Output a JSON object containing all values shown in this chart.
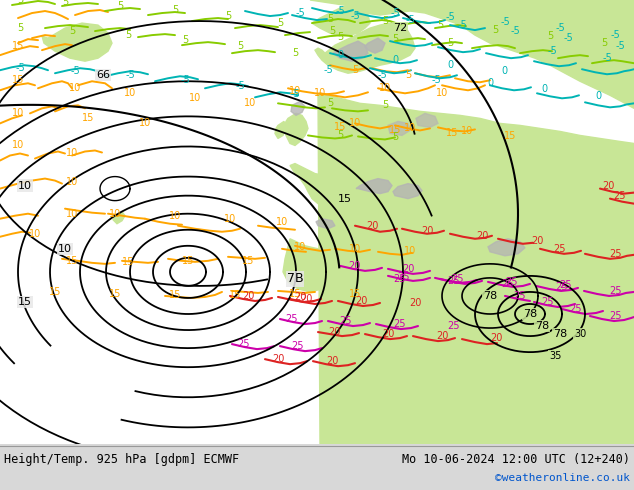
{
  "title_left": "Height/Temp. 925 hPa [gdpm] ECMWF",
  "title_right": "Mo 10-06-2024 12:00 UTC (12+240)",
  "credit": "©weatheronline.co.uk",
  "sea_color": "#e8e8e8",
  "land_color": "#c8e696",
  "gray_color": "#a8a8a8",
  "fig_width": 6.34,
  "fig_height": 4.9,
  "dpi": 100
}
